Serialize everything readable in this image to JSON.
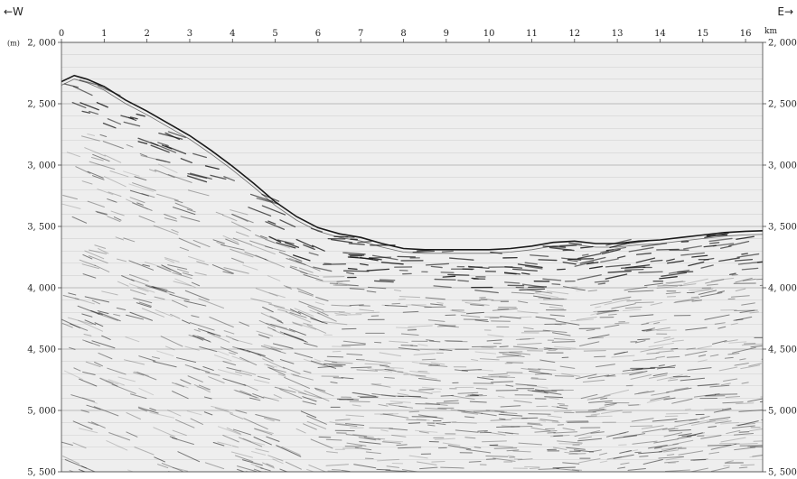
{
  "direction": {
    "west": "←W",
    "east": "E→"
  },
  "axes": {
    "x_unit": "km",
    "x_ticks": [
      "0",
      "1",
      "2",
      "3",
      "4",
      "5",
      "6",
      "7",
      "8",
      "9",
      "10",
      "11",
      "12",
      "13",
      "14",
      "15",
      "16"
    ],
    "y_unit": "(m)",
    "y_ticks": [
      "2, 000",
      "2, 500",
      "3, 000",
      "3, 500",
      "4, 000",
      "4, 500",
      "5, 000",
      "5, 500"
    ],
    "x_range": [
      0,
      16.4
    ],
    "y_range": [
      2000,
      5500
    ],
    "grid": true
  },
  "colors": {
    "background": "#eeeeee",
    "ink": "#1a1a1a",
    "grid": "#9a9a9a"
  },
  "seafloor_profile_km_m": [
    [
      0.0,
      2320
    ],
    [
      0.3,
      2270
    ],
    [
      0.6,
      2300
    ],
    [
      1.0,
      2360
    ],
    [
      1.5,
      2470
    ],
    [
      2.0,
      2560
    ],
    [
      2.5,
      2660
    ],
    [
      3.0,
      2760
    ],
    [
      3.5,
      2880
    ],
    [
      4.0,
      3010
    ],
    [
      4.5,
      3150
    ],
    [
      5.0,
      3300
    ],
    [
      5.5,
      3420
    ],
    [
      6.0,
      3510
    ],
    [
      6.5,
      3560
    ],
    [
      7.0,
      3590
    ],
    [
      7.5,
      3640
    ],
    [
      8.0,
      3680
    ],
    [
      8.5,
      3690
    ],
    [
      9.0,
      3690
    ],
    [
      9.5,
      3690
    ],
    [
      10.0,
      3690
    ],
    [
      10.5,
      3680
    ],
    [
      11.0,
      3660
    ],
    [
      11.5,
      3630
    ],
    [
      12.0,
      3620
    ],
    [
      12.5,
      3640
    ],
    [
      13.0,
      3640
    ],
    [
      13.5,
      3620
    ],
    [
      14.0,
      3610
    ],
    [
      14.5,
      3590
    ],
    [
      15.0,
      3570
    ],
    [
      15.5,
      3550
    ],
    [
      16.0,
      3540
    ],
    [
      16.4,
      3535
    ]
  ]
}
